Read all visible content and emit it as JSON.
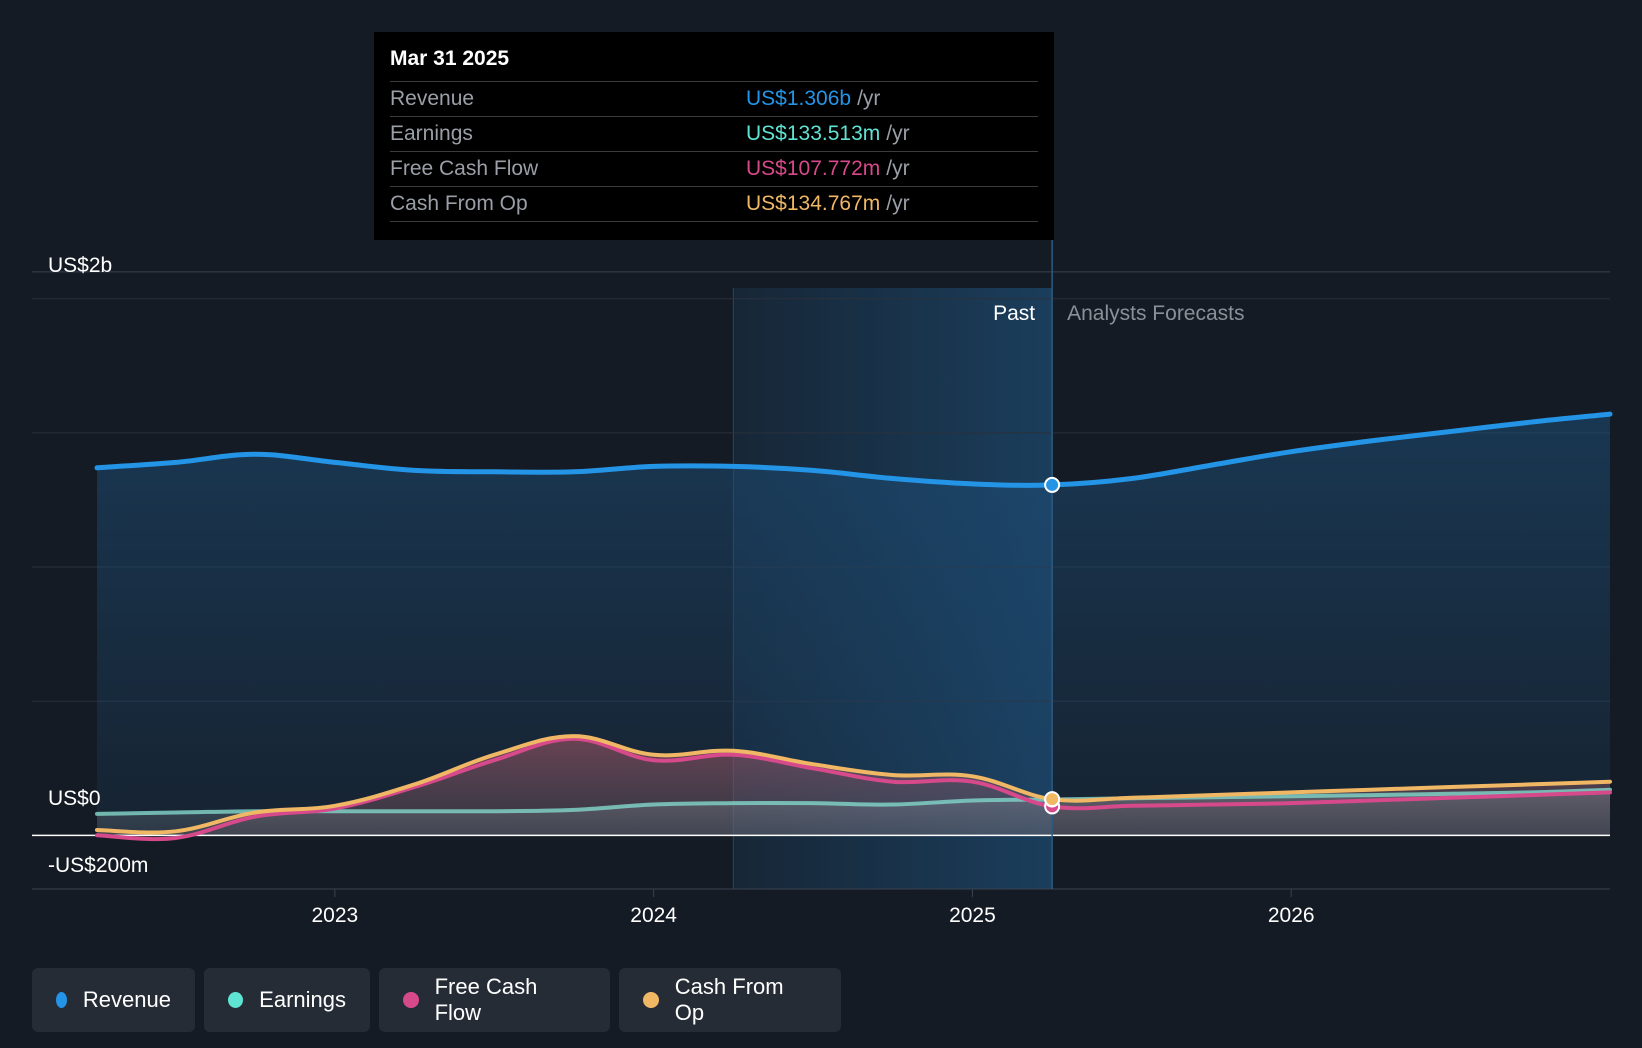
{
  "tooltip": {
    "date": "Mar 31 2025",
    "rows": [
      {
        "label": "Revenue",
        "value": "US$1.306b",
        "unit": "/yr",
        "color": "#2394e6"
      },
      {
        "label": "Earnings",
        "value": "US$133.513m",
        "unit": "/yr",
        "color": "#5fe3d2"
      },
      {
        "label": "Free Cash Flow",
        "value": "US$107.772m",
        "unit": "/yr",
        "color": "#d6498b"
      },
      {
        "label": "Cash From Op",
        "value": "US$134.767m",
        "unit": "/yr",
        "color": "#f0b765"
      }
    ]
  },
  "legend": [
    {
      "label": "Revenue",
      "color": "#2394e6"
    },
    {
      "label": "Earnings",
      "color": "#5fe3d2"
    },
    {
      "label": "Free Cash Flow",
      "color": "#d6498b"
    },
    {
      "label": "Cash From Op",
      "color": "#f0b765"
    }
  ],
  "chart_data": {
    "type": "area",
    "title": "",
    "y_tick_labels": [
      "US$2b",
      "US$0",
      "-US$200m"
    ],
    "ylim": [
      -0.2,
      2.04
    ],
    "x_ticks": [
      {
        "value": 2023.0,
        "label": "2023"
      },
      {
        "value": 2024.0,
        "label": "2024"
      },
      {
        "value": 2025.0,
        "label": "2025"
      },
      {
        "value": 2026.0,
        "label": "2026"
      }
    ],
    "xlim": [
      2022.05,
      2027.0
    ],
    "past_label": "Past",
    "forecast_label": "Analysts Forecasts",
    "highlight_start": 2024.25,
    "divider_x": 2025.25,
    "series": [
      {
        "name": "Revenue",
        "color": "#2394e6",
        "x": [
          2022.25,
          2022.5,
          2022.75,
          2023.0,
          2023.25,
          2023.5,
          2023.75,
          2024.0,
          2024.25,
          2024.5,
          2024.75,
          2025.0,
          2025.25,
          2025.5,
          2025.75,
          2026.0,
          2026.25,
          2026.5,
          2026.75,
          2027.0
        ],
        "values": [
          1.37,
          1.39,
          1.42,
          1.39,
          1.36,
          1.355,
          1.355,
          1.375,
          1.375,
          1.36,
          1.33,
          1.31,
          1.306,
          1.33,
          1.38,
          1.43,
          1.47,
          1.505,
          1.54,
          1.57
        ]
      },
      {
        "name": "Earnings",
        "color": "#5fe3d2",
        "x": [
          2022.25,
          2022.5,
          2022.75,
          2023.0,
          2023.25,
          2023.5,
          2023.75,
          2024.0,
          2024.25,
          2024.5,
          2024.75,
          2025.0,
          2025.25,
          2025.5,
          2025.75,
          2026.0,
          2026.25,
          2026.5,
          2026.75,
          2027.0
        ],
        "values": [
          0.08,
          0.085,
          0.09,
          0.09,
          0.09,
          0.09,
          0.095,
          0.115,
          0.12,
          0.12,
          0.115,
          0.13,
          0.1335,
          0.138,
          0.142,
          0.146,
          0.15,
          0.155,
          0.16,
          0.17
        ]
      },
      {
        "name": "Free Cash Flow",
        "color": "#d6498b",
        "x": [
          2022.25,
          2022.5,
          2022.75,
          2023.0,
          2023.25,
          2023.5,
          2023.75,
          2024.0,
          2024.25,
          2024.5,
          2024.75,
          2025.0,
          2025.25,
          2025.5,
          2025.75,
          2026.0,
          2026.25,
          2026.5,
          2026.75,
          2027.0
        ],
        "values": [
          0.0,
          -0.01,
          0.07,
          0.1,
          0.18,
          0.28,
          0.36,
          0.28,
          0.3,
          0.25,
          0.2,
          0.2,
          0.1078,
          0.11,
          0.115,
          0.12,
          0.13,
          0.14,
          0.15,
          0.16
        ]
      },
      {
        "name": "Cash From Op",
        "color": "#f0b765",
        "x": [
          2022.25,
          2022.5,
          2022.75,
          2023.0,
          2023.25,
          2023.5,
          2023.75,
          2024.0,
          2024.25,
          2024.5,
          2024.75,
          2025.0,
          2025.25,
          2025.5,
          2025.75,
          2026.0,
          2026.25,
          2026.5,
          2026.75,
          2027.0
        ],
        "values": [
          0.02,
          0.015,
          0.085,
          0.11,
          0.19,
          0.3,
          0.37,
          0.3,
          0.315,
          0.265,
          0.225,
          0.22,
          0.1348,
          0.14,
          0.15,
          0.16,
          0.17,
          0.18,
          0.19,
          0.2
        ]
      }
    ]
  }
}
